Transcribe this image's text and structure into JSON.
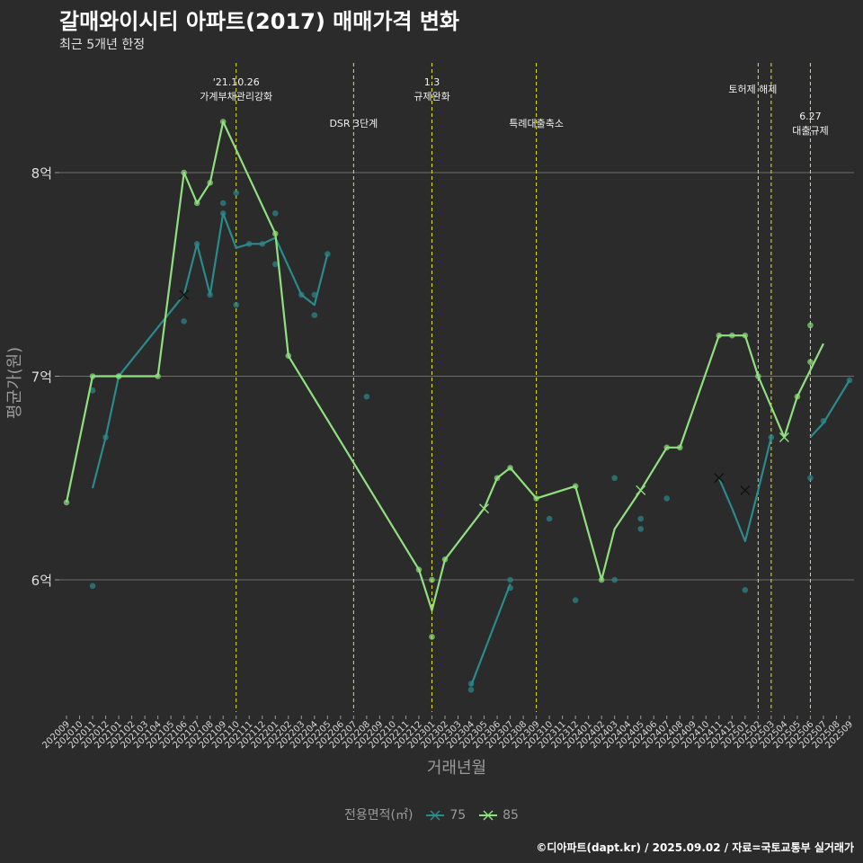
{
  "title": "갈매와이시티 아파트(2017) 매매가격 변화",
  "subtitle": "최근 5개년 한정",
  "caption": "©디아파트(dapt.kr) / 2025.09.02 / 자료=국토교통부 실거래가",
  "chart_data": {
    "type": "line",
    "xlabel": "거래년월",
    "ylabel": "평균가(원)",
    "y_ticks": [
      {
        "value": 6.0,
        "label": "6억"
      },
      {
        "value": 7.0,
        "label": "7억"
      },
      {
        "value": 8.0,
        "label": "8억"
      }
    ],
    "ylim": [
      5.35,
      8.55
    ],
    "grid": true,
    "x_ticks": [
      "202009",
      "202010",
      "202011",
      "202012",
      "202101",
      "202102",
      "202103",
      "202104",
      "202105",
      "202106",
      "202107",
      "202108",
      "202109",
      "202110",
      "202111",
      "202112",
      "202201",
      "202202",
      "202203",
      "202204",
      "202205",
      "202206",
      "202207",
      "202208",
      "202209",
      "202210",
      "202211",
      "202212",
      "202301",
      "202302",
      "202303",
      "202304",
      "202305",
      "202306",
      "202307",
      "202308",
      "202309",
      "202310",
      "202311",
      "202312",
      "202401",
      "202402",
      "202403",
      "202404",
      "202405",
      "202406",
      "202407",
      "202408",
      "202409",
      "202410",
      "202411",
      "202412",
      "202501",
      "202502",
      "202503",
      "202504",
      "202505",
      "202506",
      "202507",
      "202508",
      "202509"
    ],
    "legend_title": "전용면적(㎡)",
    "legend_position": "bottom",
    "series": [
      {
        "name": "75",
        "color": "#2a8a8c",
        "line": [
          {
            "x": "202011",
            "y": 6.45
          },
          {
            "x": "202012",
            "y": 6.7
          },
          {
            "x": "202101",
            "y": 7.0
          },
          {
            "x": "202106",
            "y": 7.4
          },
          {
            "x": "202107",
            "y": 7.65
          },
          {
            "x": "202108",
            "y": 7.4
          },
          {
            "x": "202109",
            "y": 7.8
          },
          {
            "x": "202110",
            "y": 7.63
          },
          {
            "x": "202111",
            "y": 7.65
          },
          {
            "x": "202112",
            "y": 7.65
          },
          {
            "x": "202201",
            "y": 7.68
          },
          {
            "x": "202203",
            "y": 7.4
          },
          {
            "x": "202204",
            "y": 7.35
          },
          {
            "x": "202205",
            "y": 7.6
          }
        ],
        "line2": [
          {
            "x": "202304",
            "y": 5.48
          },
          {
            "x": "202307",
            "y": 5.98
          }
        ],
        "line3": [
          {
            "x": "202411",
            "y": 6.5
          },
          {
            "x": "202412",
            "y": 6.35
          },
          {
            "x": "202501",
            "y": 6.19
          },
          {
            "x": "202502",
            "y": 6.44
          },
          {
            "x": "202503",
            "y": 6.7
          }
        ],
        "line4": [
          {
            "x": "202506",
            "y": 6.7
          },
          {
            "x": "202507",
            "y": 6.77
          },
          {
            "x": "202509",
            "y": 6.98
          }
        ],
        "points": [
          {
            "x": "202011",
            "y": 6.93
          },
          {
            "x": "202011",
            "y": 5.97
          },
          {
            "x": "202012",
            "y": 6.7
          },
          {
            "x": "202101",
            "y": 7.0
          },
          {
            "x": "202106",
            "y": 7.27
          },
          {
            "x": "202107",
            "y": 7.65
          },
          {
            "x": "202108",
            "y": 7.4
          },
          {
            "x": "202109",
            "y": 7.85
          },
          {
            "x": "202109",
            "y": 7.8
          },
          {
            "x": "202110",
            "y": 7.9
          },
          {
            "x": "202110",
            "y": 7.35
          },
          {
            "x": "202111",
            "y": 7.65
          },
          {
            "x": "202112",
            "y": 7.65
          },
          {
            "x": "202201",
            "y": 7.8
          },
          {
            "x": "202201",
            "y": 7.55
          },
          {
            "x": "202203",
            "y": 7.4
          },
          {
            "x": "202204",
            "y": 7.4
          },
          {
            "x": "202204",
            "y": 7.3
          },
          {
            "x": "202205",
            "y": 7.6
          },
          {
            "x": "202208",
            "y": 6.9
          },
          {
            "x": "202304",
            "y": 5.46
          },
          {
            "x": "202304",
            "y": 5.49
          },
          {
            "x": "202307",
            "y": 6.0
          },
          {
            "x": "202307",
            "y": 5.96
          },
          {
            "x": "202310",
            "y": 6.3
          },
          {
            "x": "202312",
            "y": 5.9
          },
          {
            "x": "202403",
            "y": 6.5
          },
          {
            "x": "202403",
            "y": 6.0
          },
          {
            "x": "202405",
            "y": 6.3
          },
          {
            "x": "202405",
            "y": 6.25
          },
          {
            "x": "202407",
            "y": 6.4
          },
          {
            "x": "202501",
            "y": 5.95
          },
          {
            "x": "202503",
            "y": 6.7
          },
          {
            "x": "202506",
            "y": 6.5
          },
          {
            "x": "202507",
            "y": 6.78
          },
          {
            "x": "202509",
            "y": 6.98
          }
        ],
        "crosses": [
          {
            "x": "202106",
            "y": 7.4
          },
          {
            "x": "202411",
            "y": 6.5
          },
          {
            "x": "202501",
            "y": 6.44
          }
        ]
      },
      {
        "name": "85",
        "color": "#8fe07e",
        "line": [
          {
            "x": "202009",
            "y": 6.38
          },
          {
            "x": "202011",
            "y": 7.0
          },
          {
            "x": "202101",
            "y": 7.0
          },
          {
            "x": "202104",
            "y": 7.0
          },
          {
            "x": "202106",
            "y": 8.0
          },
          {
            "x": "202107",
            "y": 7.85
          },
          {
            "x": "202108",
            "y": 7.95
          },
          {
            "x": "202109",
            "y": 8.25
          },
          {
            "x": "202201",
            "y": 7.7
          },
          {
            "x": "202202",
            "y": 7.1
          },
          {
            "x": "202212",
            "y": 6.05
          },
          {
            "x": "202301",
            "y": 5.85
          },
          {
            "x": "202302",
            "y": 6.1
          },
          {
            "x": "202305",
            "y": 6.35
          },
          {
            "x": "202306",
            "y": 6.5
          },
          {
            "x": "202307",
            "y": 6.55
          },
          {
            "x": "202309",
            "y": 6.4
          },
          {
            "x": "202312",
            "y": 6.46
          },
          {
            "x": "202402",
            "y": 6.0
          },
          {
            "x": "202403",
            "y": 6.25
          },
          {
            "x": "202405",
            "y": 6.44
          },
          {
            "x": "202407",
            "y": 6.65
          },
          {
            "x": "202408",
            "y": 6.65
          },
          {
            "x": "202411",
            "y": 7.2
          },
          {
            "x": "202412",
            "y": 7.2
          },
          {
            "x": "202501",
            "y": 7.2
          },
          {
            "x": "202502",
            "y": 7.0
          },
          {
            "x": "202504",
            "y": 6.7
          },
          {
            "x": "202505",
            "y": 6.9
          },
          {
            "x": "202507",
            "y": 7.16
          }
        ],
        "points": [
          {
            "x": "202009",
            "y": 6.38
          },
          {
            "x": "202011",
            "y": 7.0
          },
          {
            "x": "202101",
            "y": 7.0
          },
          {
            "x": "202104",
            "y": 7.0
          },
          {
            "x": "202106",
            "y": 8.0
          },
          {
            "x": "202107",
            "y": 7.85
          },
          {
            "x": "202108",
            "y": 7.95
          },
          {
            "x": "202109",
            "y": 8.25
          },
          {
            "x": "202201",
            "y": 7.7
          },
          {
            "x": "202202",
            "y": 7.1
          },
          {
            "x": "202212",
            "y": 6.05
          },
          {
            "x": "202301",
            "y": 6.0
          },
          {
            "x": "202301",
            "y": 5.72
          },
          {
            "x": "202302",
            "y": 6.1
          },
          {
            "x": "202306",
            "y": 6.5
          },
          {
            "x": "202307",
            "y": 6.55
          },
          {
            "x": "202309",
            "y": 6.4
          },
          {
            "x": "202312",
            "y": 6.46
          },
          {
            "x": "202402",
            "y": 6.0
          },
          {
            "x": "202407",
            "y": 6.65
          },
          {
            "x": "202408",
            "y": 6.65
          },
          {
            "x": "202411",
            "y": 7.2
          },
          {
            "x": "202412",
            "y": 7.2
          },
          {
            "x": "202501",
            "y": 7.2
          },
          {
            "x": "202502",
            "y": 7.0
          },
          {
            "x": "202505",
            "y": 6.9
          },
          {
            "x": "202506",
            "y": 7.25
          },
          {
            "x": "202506",
            "y": 7.07
          }
        ],
        "crosses": [
          {
            "x": "202305",
            "y": 6.35
          },
          {
            "x": "202405",
            "y": 6.44
          },
          {
            "x": "202504",
            "y": 6.7
          }
        ]
      }
    ],
    "events": [
      {
        "x": "202110",
        "label": [
          "'21.10.26",
          "가계부채관리강화"
        ]
      },
      {
        "x": "202207",
        "label": [
          "DSR 3단계"
        ]
      },
      {
        "x": "202301",
        "label": [
          "1.3",
          "규제완화"
        ]
      },
      {
        "x": "202309",
        "label": [
          "특례대출축소"
        ]
      },
      {
        "x": "202502",
        "label": [
          "토허제 해제"
        ]
      },
      {
        "x": "202503",
        "label": []
      },
      {
        "x": "202506",
        "label": [
          "6.27",
          "대출규제"
        ]
      }
    ]
  }
}
